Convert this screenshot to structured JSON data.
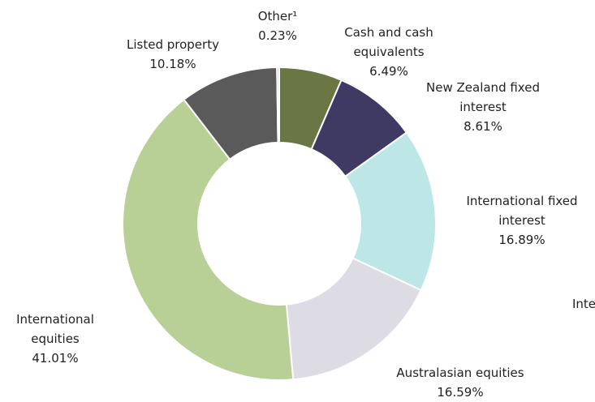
{
  "chart_data": {
    "type": "donut",
    "categories": [
      "Cash and cash equivalents",
      "New Zealand fixed interest",
      "International fixed interest",
      "Australasian equities",
      "International equities",
      "Listed property",
      "Other¹"
    ],
    "values": [
      6.49,
      8.61,
      16.89,
      16.59,
      41.01,
      10.18,
      0.23
    ],
    "value_labels": [
      "6.49%",
      "8.61%",
      "16.89%",
      "16.59%",
      "41.01%",
      "10.18%",
      "0.23%"
    ],
    "colors": [
      "#6b7645",
      "#3f3a63",
      "#bde6e6",
      "#dddbe4",
      "#b8cf96",
      "#5a5a5a",
      "#c8c8c8"
    ]
  },
  "clipped_text": "Inte"
}
